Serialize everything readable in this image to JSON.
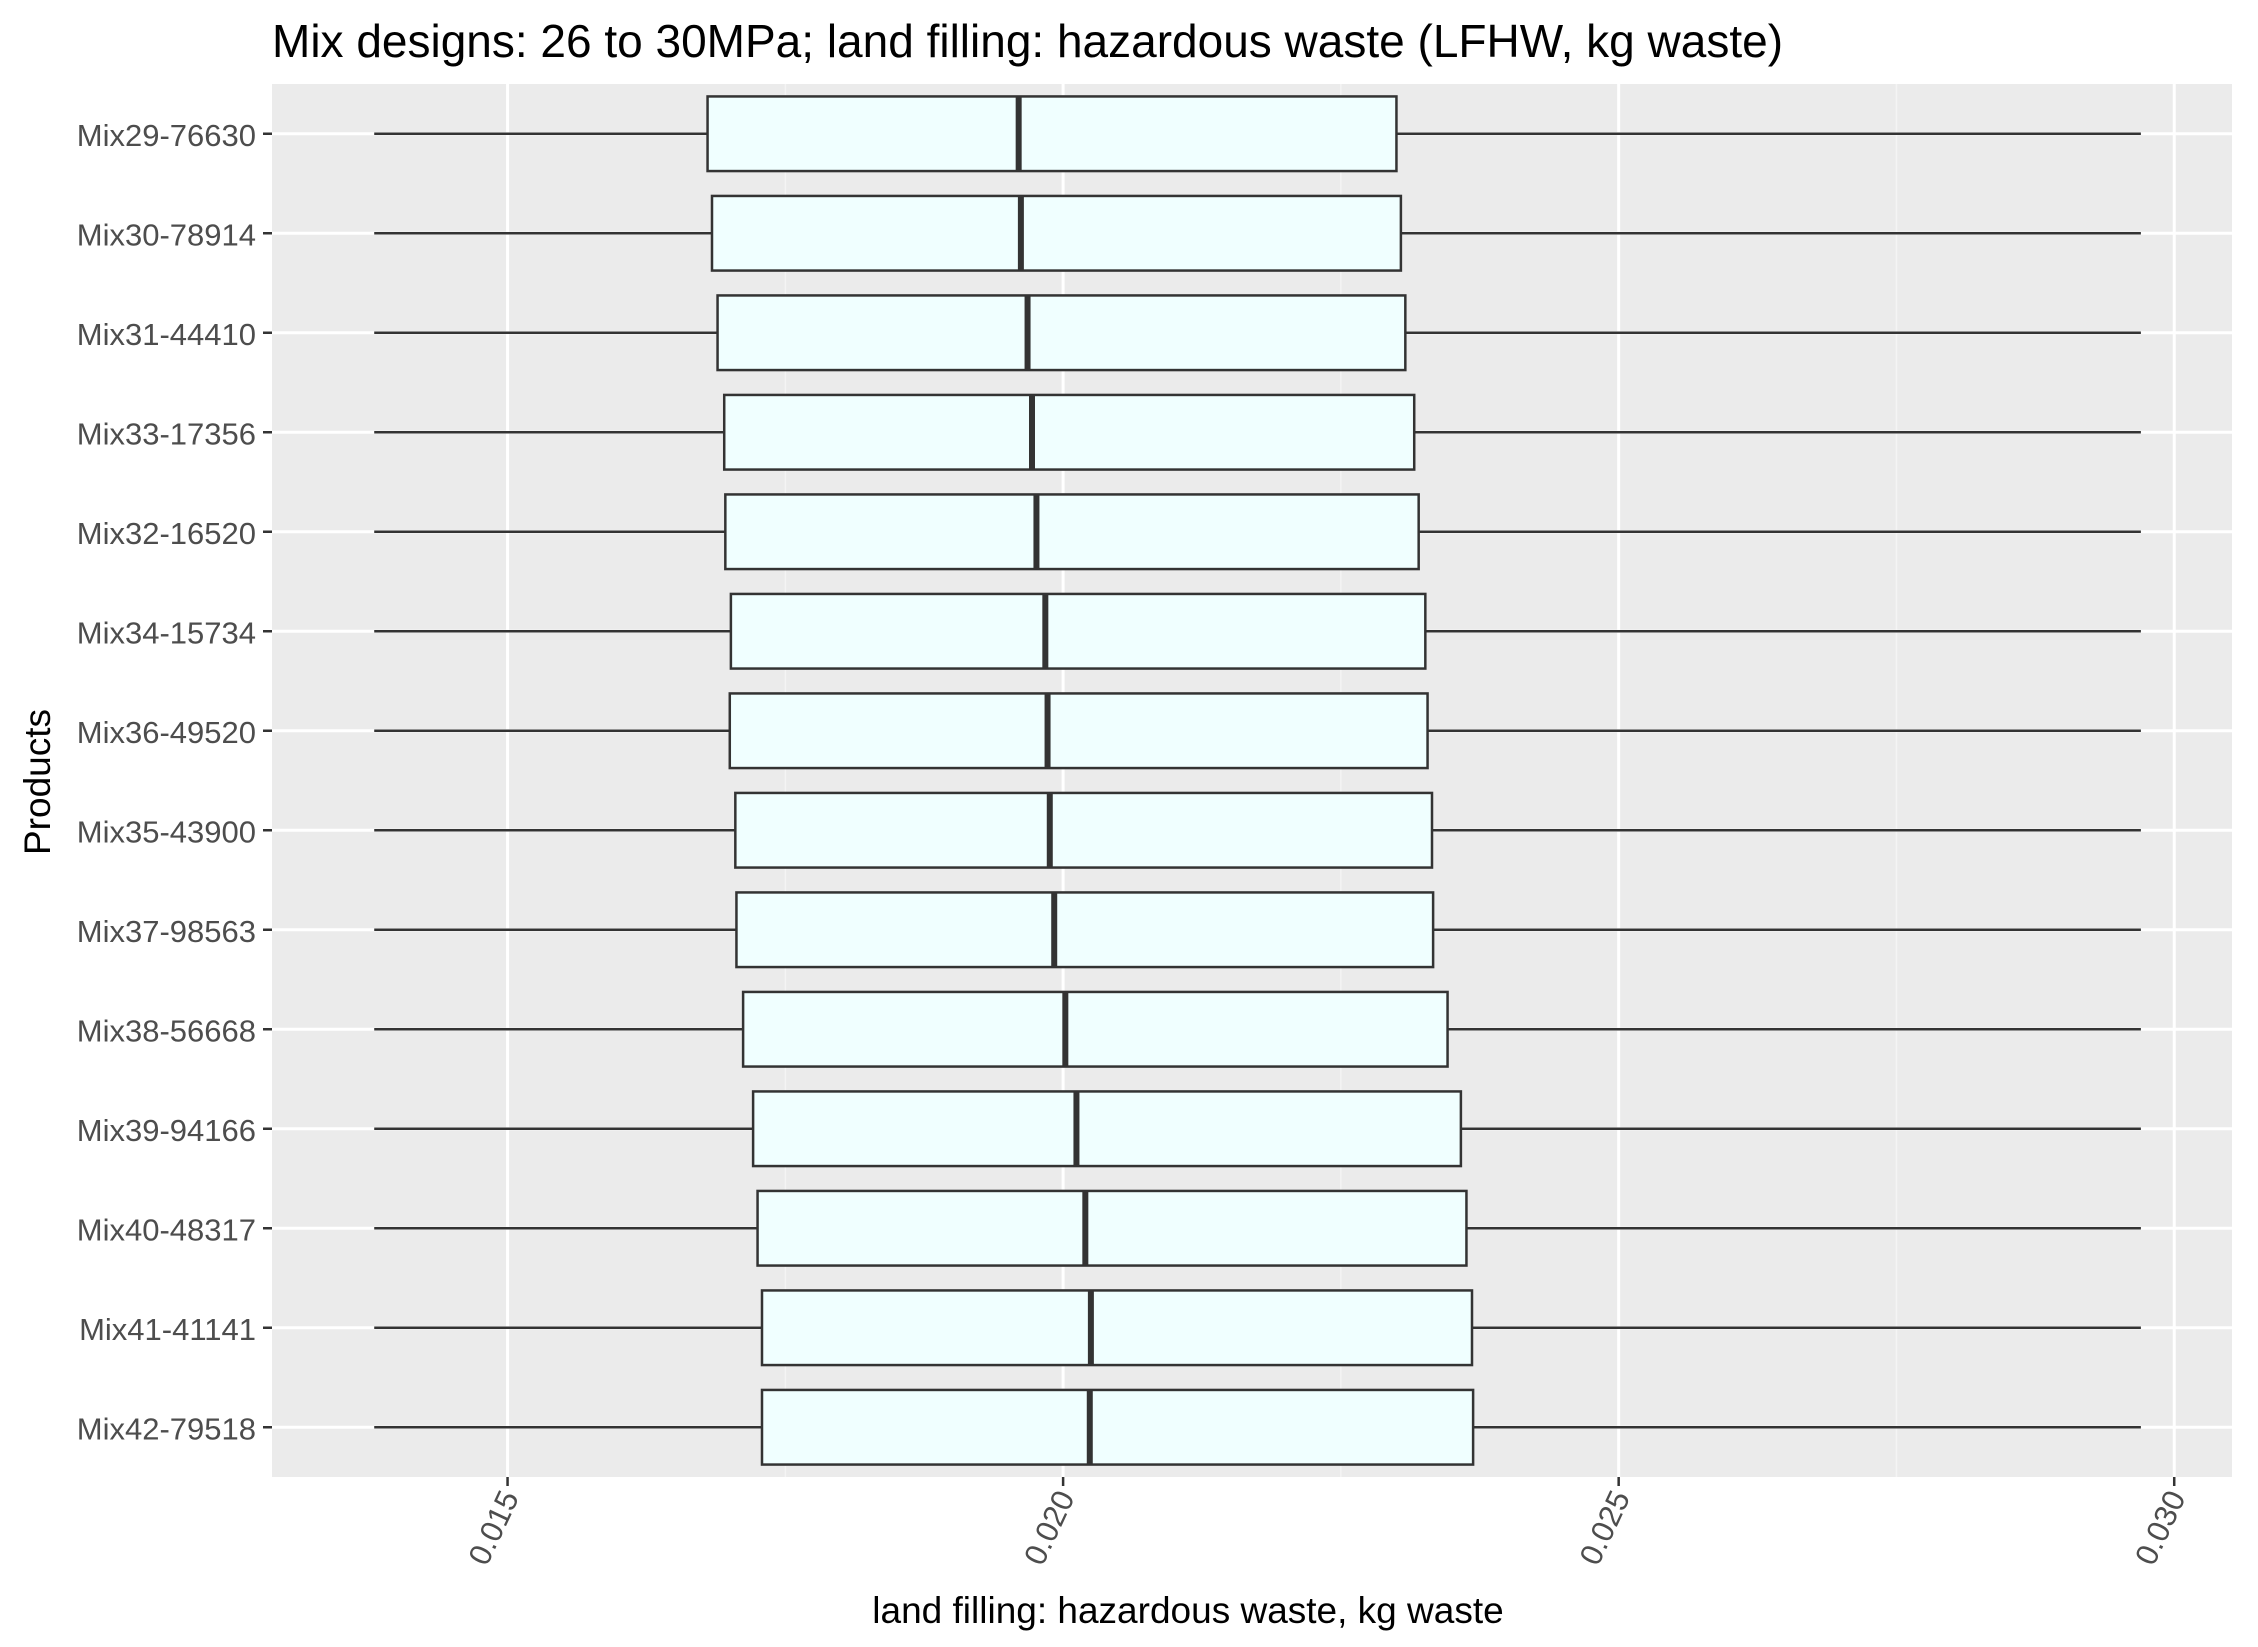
{
  "chart_data": {
    "type": "boxplot",
    "orientation": "horizontal",
    "title": "Mix designs: 26 to 30MPa; land filling: hazardous waste (LFHW, kg waste)",
    "xlabel": "land filling: hazardous waste, kg waste",
    "ylabel": "Products",
    "xlim": [
      0.01288,
      0.03052
    ],
    "x_ticks": [
      0.015,
      0.02,
      0.025,
      0.03
    ],
    "x_tick_labels": [
      "0.015",
      "0.020",
      "0.025",
      "0.030"
    ],
    "grid": true,
    "colors": {
      "panel_bg": "#ebebeb",
      "grid_major": "#ffffff",
      "grid_minor": "#f4f4f4",
      "box_fill": "#f0ffff",
      "box_stroke": "#333333",
      "text": "#4d4d4d"
    },
    "categories": [
      "Mix29-76630",
      "Mix30-78914",
      "Mix31-44410",
      "Mix33-17356",
      "Mix32-16520",
      "Mix34-15734",
      "Mix36-49520",
      "Mix35-43900",
      "Mix37-98563",
      "Mix38-56668",
      "Mix39-94166",
      "Mix40-48317",
      "Mix41-41141",
      "Mix42-79518"
    ],
    "boxes": [
      {
        "min": 0.0138,
        "q1": 0.0168,
        "median": 0.0196,
        "q3": 0.023,
        "max": 0.0297
      },
      {
        "min": 0.0138,
        "q1": 0.01684,
        "median": 0.01962,
        "q3": 0.02304,
        "max": 0.0297
      },
      {
        "min": 0.0138,
        "q1": 0.01689,
        "median": 0.01968,
        "q3": 0.02308,
        "max": 0.0297
      },
      {
        "min": 0.0138,
        "q1": 0.01695,
        "median": 0.01972,
        "q3": 0.02316,
        "max": 0.0297
      },
      {
        "min": 0.0138,
        "q1": 0.01696,
        "median": 0.01976,
        "q3": 0.0232,
        "max": 0.0297
      },
      {
        "min": 0.0138,
        "q1": 0.01701,
        "median": 0.01984,
        "q3": 0.02326,
        "max": 0.0297
      },
      {
        "min": 0.0138,
        "q1": 0.017,
        "median": 0.01986,
        "q3": 0.02328,
        "max": 0.0297
      },
      {
        "min": 0.0138,
        "q1": 0.01705,
        "median": 0.01988,
        "q3": 0.02332,
        "max": 0.0297
      },
      {
        "min": 0.0138,
        "q1": 0.01706,
        "median": 0.01992,
        "q3": 0.02333,
        "max": 0.0297
      },
      {
        "min": 0.0138,
        "q1": 0.01712,
        "median": 0.02002,
        "q3": 0.02346,
        "max": 0.0297
      },
      {
        "min": 0.0138,
        "q1": 0.01721,
        "median": 0.02012,
        "q3": 0.02358,
        "max": 0.0297
      },
      {
        "min": 0.0138,
        "q1": 0.01725,
        "median": 0.0202,
        "q3": 0.02363,
        "max": 0.0297
      },
      {
        "min": 0.0138,
        "q1": 0.01729,
        "median": 0.02025,
        "q3": 0.02368,
        "max": 0.0297
      },
      {
        "min": 0.0138,
        "q1": 0.01729,
        "median": 0.02024,
        "q3": 0.02369,
        "max": 0.0297
      }
    ]
  }
}
